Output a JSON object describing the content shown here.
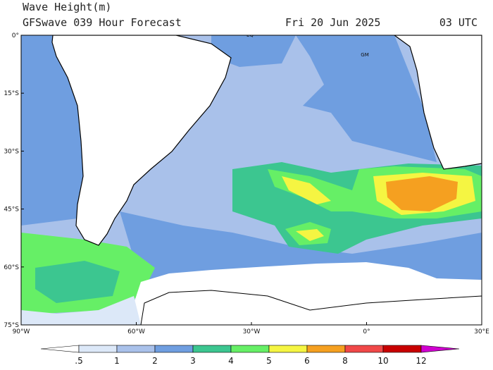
{
  "header": {
    "title": "Wave Height(m)",
    "subtitle": "GFSwave 039 Hour Forecast",
    "date": "Fri 20 Jun 2025",
    "time": "03 UTC"
  },
  "lat_labels": [
    "0°",
    "15°S",
    "30°S",
    "45°S",
    "60°S",
    "75°S"
  ],
  "lon_labels": [
    "90°W",
    "60°W",
    "30°W",
    "0°",
    "30°E"
  ],
  "map_labels": [
    "EQ",
    "GM"
  ],
  "colorbar": {
    "labels": [
      ".5",
      "1",
      "2",
      "3",
      "4",
      "5",
      "6",
      "8",
      "10",
      "12"
    ],
    "colors": [
      "#ffffff",
      "#dce8f8",
      "#a9c1ea",
      "#6f9ee0",
      "#3cc690",
      "#66ef66",
      "#f5f542",
      "#f5a020",
      "#f04848",
      "#c80000",
      "#d000d0"
    ]
  }
}
